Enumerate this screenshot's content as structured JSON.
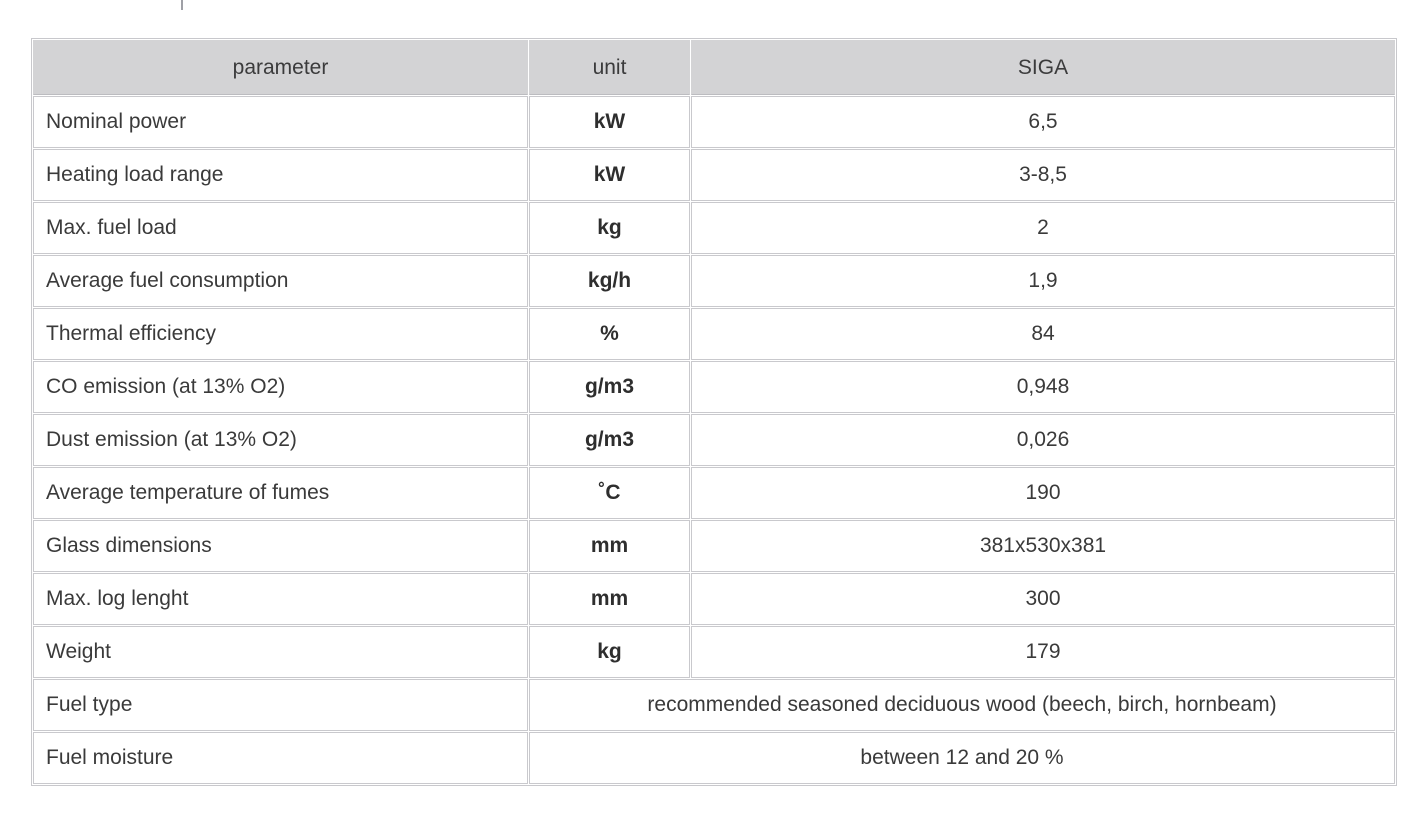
{
  "colors": {
    "page_background": "#ffffff",
    "header_background": "#d3d3d5",
    "cell_border": "#c9c9cd",
    "header_bottom_border": "#bcbcc0",
    "text": "#3a3a3a",
    "top_tick": "#9fa0a6"
  },
  "table": {
    "columns": [
      {
        "label": "parameter"
      },
      {
        "label": "unit"
      },
      {
        "label": "SIGA"
      }
    ],
    "rows": [
      {
        "param": "Nominal power",
        "unit": "kW",
        "value": "6,5"
      },
      {
        "param": "Heating load range",
        "unit": "kW",
        "value": "3-8,5"
      },
      {
        "param": "Max. fuel load",
        "unit": "kg",
        "value": "2"
      },
      {
        "param": "Average fuel consumption",
        "unit": "kg/h",
        "value": "1,9"
      },
      {
        "param": "Thermal efficiency",
        "unit": "%",
        "value": "84"
      },
      {
        "param": "CO emission (at 13% O2)",
        "unit": "g/m3",
        "value": "0,948"
      },
      {
        "param": "Dust emission (at 13% O2)",
        "unit": "g/m3",
        "value": "0,026"
      },
      {
        "param": "Average temperature of fumes",
        "unit": "˚C",
        "value": "190"
      },
      {
        "param": "Glass dimensions",
        "unit": "mm",
        "value": "381x530x381"
      },
      {
        "param": "Max. log lenght",
        "unit": "mm",
        "value": "300"
      },
      {
        "param": "Weight",
        "unit": "kg",
        "value": "179"
      }
    ],
    "span_rows": [
      {
        "param": "Fuel type",
        "value": "recommended seasoned deciduous wood (beech, birch, hornbeam)"
      },
      {
        "param": "Fuel moisture",
        "value": "between 12 and 20 %"
      }
    ]
  }
}
